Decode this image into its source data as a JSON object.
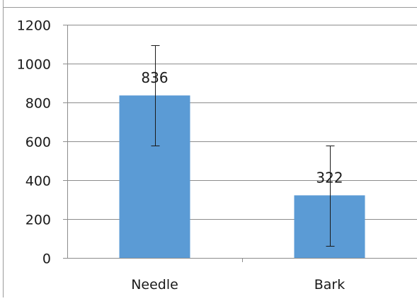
{
  "chart_data": {
    "type": "bar",
    "title": "",
    "xlabel": "",
    "ylabel": "",
    "categories": [
      "Needle",
      "Bark"
    ],
    "values": [
      836,
      322
    ],
    "error_high": [
      1093,
      580
    ],
    "error_low": [
      580,
      62
    ],
    "data_labels": [
      "836",
      "322"
    ],
    "ylim": [
      0,
      1200
    ],
    "yticks": [
      "0",
      "200",
      "400",
      "600",
      "800",
      "1000",
      "1200"
    ],
    "grid": true,
    "legend": "none",
    "bar_color": "#5b9bd5"
  }
}
